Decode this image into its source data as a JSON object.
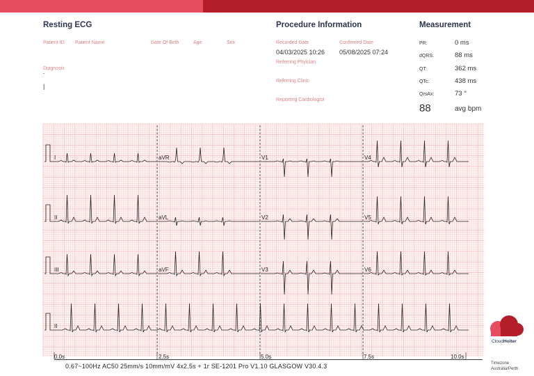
{
  "header": {
    "brand_colors": [
      "#e64d5f",
      "#b31e2a"
    ]
  },
  "resting": {
    "title": "Resting ECG",
    "patient_id_label": "Patient ID",
    "patient_name_label": "Patient Name",
    "dob_label": "Date Of Birth",
    "age_label": "Age",
    "sex_label": "Sex",
    "diagnosis_label": "Diagnosis",
    "diagnosis_value": "-",
    "cursor_mark": "|"
  },
  "procedure": {
    "title": "Procedure Information",
    "recorded_label": "Recorded Date",
    "recorded_value": "04/03/2025 10:26",
    "confirmed_label": "Confirmed Date",
    "confirmed_value": "05/08/2025 07:24",
    "referring_physician_label": "Referring Phyician",
    "referring_clinic_label": "Referring Clinic",
    "reporting_cardiologist_label": "Reporting Cardiologist"
  },
  "measurement": {
    "title": "Measurement",
    "items": [
      {
        "label": "PR:",
        "value": "0 ms"
      },
      {
        "label": "dQRS:",
        "value": "88 ms"
      },
      {
        "label": "QT:",
        "value": "362 ms"
      },
      {
        "label": "QTc:",
        "value": "438 ms"
      },
      {
        "label": "QrsAx:",
        "value": "73 °"
      }
    ],
    "heart_rate": "88",
    "heart_rate_unit": "avg bpm"
  },
  "ecg": {
    "leads": [
      [
        "I",
        "aVR",
        "V1",
        "V4"
      ],
      [
        "II",
        "aVL",
        "V2",
        "V5"
      ],
      [
        "III",
        "aVF",
        "V3",
        "V6"
      ],
      [
        "II"
      ]
    ],
    "time_labels": [
      "0.0s",
      "2.5s",
      "5.0s",
      "7.5s",
      "10.0s"
    ],
    "grid_color": "#f2b8b8",
    "trace_color": "#222222"
  },
  "footer": {
    "settings": "0.67~100Hz AC50   25mm/s 10mm/mV  4x2.5s + 1r   SE-1201 Pro V1.10   GLASGOW V30.4.3",
    "timezone_label": "Timezone",
    "timezone_value": "Australia/Perth"
  },
  "logo": {
    "name_part1": "Cloud",
    "name_part2": "Holter"
  }
}
